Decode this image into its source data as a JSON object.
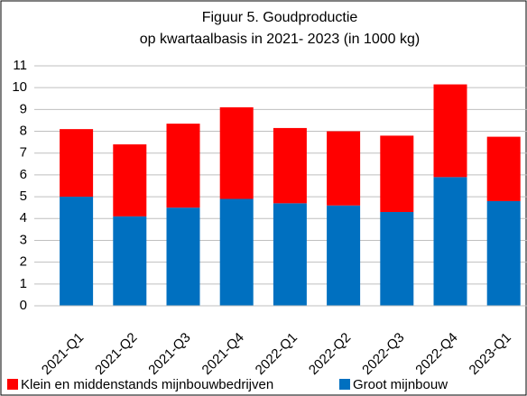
{
  "chart_data": {
    "type": "stacked_bar",
    "title": "Figuur  5. Goudproductie",
    "subtitle": "op kwartaalbasis in 2021- 2023 (in 1000 kg)",
    "categories": [
      "2021-Q1",
      "2021-Q2",
      "2021-Q3",
      "2021-Q4",
      "2022-Q1",
      "2022-Q2",
      "2022-Q3",
      "2022-Q4",
      "2023-Q1"
    ],
    "series": [
      {
        "name": "Klein en middenstands mijnbouwbedrijven",
        "color": "#ff0000",
        "values": [
          3.1,
          3.3,
          3.85,
          4.2,
          3.45,
          3.4,
          3.5,
          4.25,
          2.95
        ]
      },
      {
        "name": "Groot mijnbouw",
        "color": "#0070c0",
        "values": [
          5.0,
          4.1,
          4.5,
          4.9,
          4.7,
          4.6,
          4.3,
          5.9,
          4.8
        ]
      }
    ],
    "ylim": [
      0,
      11
    ],
    "yticks": [
      0,
      1,
      2,
      3,
      4,
      5,
      6,
      7,
      8,
      9,
      10,
      11
    ],
    "grid": true,
    "legend": "bottom"
  }
}
